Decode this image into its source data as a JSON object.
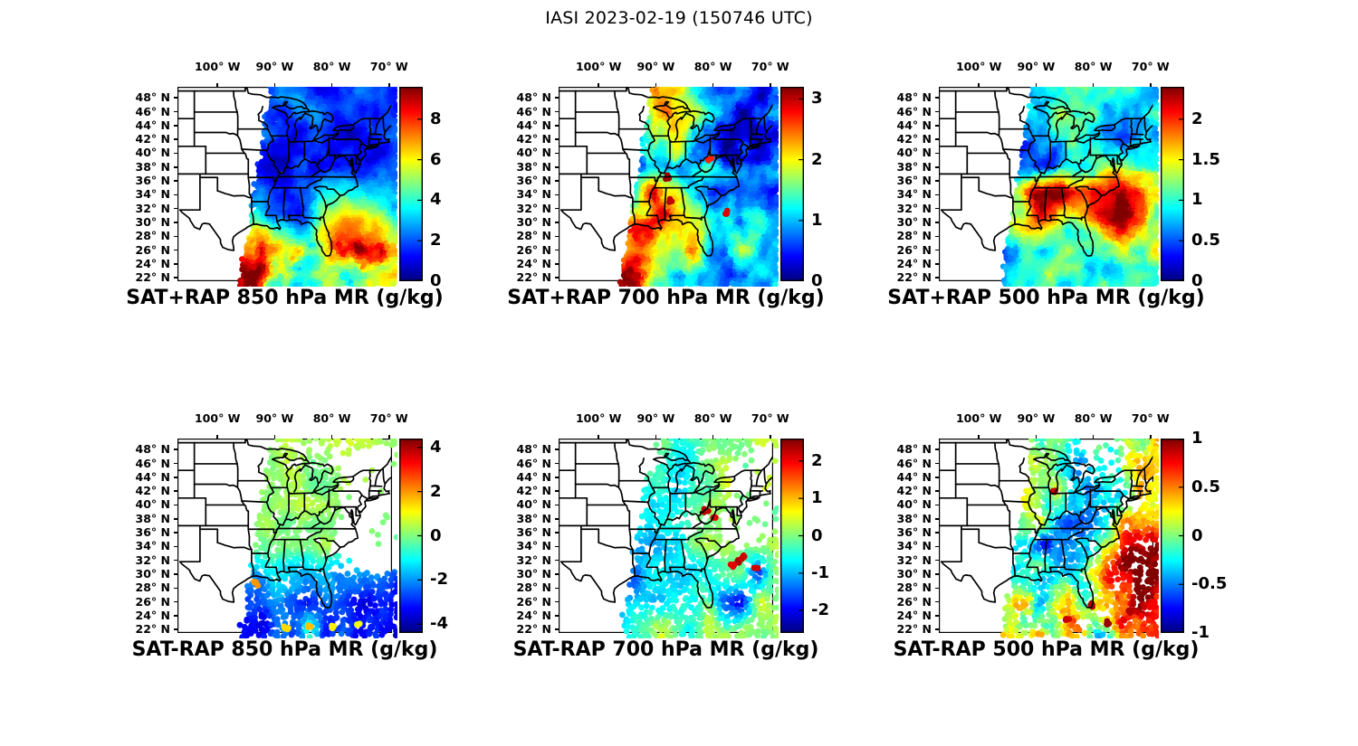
{
  "title": "IASI 2023-02-19 (150746 UTC)",
  "axes": {
    "lon_ticks": [
      {
        "label": "100° W",
        "value": -100
      },
      {
        "label": "90° W",
        "value": -90
      },
      {
        "label": "80° W",
        "value": -80
      },
      {
        "label": "70° W",
        "value": -70
      }
    ],
    "lat_ticks": [
      {
        "label": "48° N",
        "value": 48
      },
      {
        "label": "46° N",
        "value": 46
      },
      {
        "label": "44° N",
        "value": 44
      },
      {
        "label": "42° N",
        "value": 42
      },
      {
        "label": "40° N",
        "value": 40
      },
      {
        "label": "38° N",
        "value": 38
      },
      {
        "label": "36° N",
        "value": 36
      },
      {
        "label": "34° N",
        "value": 34
      },
      {
        "label": "32° N",
        "value": 32
      },
      {
        "label": "30° N",
        "value": 30
      },
      {
        "label": "28° N",
        "value": 28
      },
      {
        "label": "26° N",
        "value": 26
      },
      {
        "label": "24° N",
        "value": 24
      },
      {
        "label": "22° N",
        "value": 22
      }
    ]
  },
  "geo": {
    "lon_min": -107,
    "lon_max": -69.5,
    "lat_min": 21.5,
    "lat_max": 49.6,
    "swath_edge": {
      "lat_a": 21.5,
      "lon_a": -96.0,
      "lat_b": 49.5,
      "lon_b": -90.5
    }
  },
  "chart_data": {
    "type": "heatmap",
    "description": "Six-panel map figure of IASI satellite retrievals over the eastern United States: top row shows combined satellite+model (SAT+RAP) water-vapor mixing ratio at 850/700/500 hPa; bottom row shows satellite-minus-model differences (SAT-RAP) at the same levels. Jet colormap scatter swath over a state-boundary basemap. Values in g/kg, estimated on a coarse lon/lat grid.",
    "grid_lons": [
      -96,
      -93,
      -90,
      -87,
      -84,
      -81,
      -78,
      -75,
      -72,
      -69
    ],
    "grid_lats": [
      22,
      26,
      30,
      34,
      38,
      42,
      46,
      50
    ],
    "panels": [
      {
        "caption": "SAT+RAP 850 hPa MR (g/kg)",
        "row": 0,
        "col": 0,
        "colorbar": {
          "min": 0,
          "max": 9.6,
          "tick_labels": [
            "0",
            "2",
            "4",
            "6",
            "8"
          ],
          "tick_values": [
            0,
            2,
            4,
            6,
            8
          ]
        },
        "values": [
          [
            9,
            8,
            4,
            5,
            4,
            6,
            5,
            4,
            6,
            7
          ],
          [
            8.5,
            9,
            6,
            6,
            5,
            6.5,
            8.5,
            9,
            7,
            5
          ],
          [
            4,
            5,
            3,
            2,
            2.5,
            6,
            6.5,
            7,
            6,
            4
          ],
          [
            2.5,
            2,
            1.5,
            1.2,
            2,
            4.5,
            4,
            3,
            2.5,
            2.5
          ],
          [
            2,
            1.5,
            1,
            1,
            1.5,
            1,
            1.5,
            1.5,
            1.5,
            1.5
          ],
          [
            2.5,
            2,
            1.5,
            1,
            1.5,
            1.5,
            1,
            1.5,
            2,
            2
          ],
          [
            3,
            2.5,
            2,
            2,
            2,
            2,
            1.5,
            2,
            2,
            2
          ],
          [
            3,
            3,
            2.5,
            2.5,
            2,
            2,
            2,
            2,
            2,
            2
          ]
        ],
        "noise_amp": 0.8,
        "south_amp": 2.4,
        "dot_step": 3.5,
        "dot_r": 3.3,
        "dot_jit": 1.4,
        "cov_thresh": 0,
        "pinhole": 0,
        "gaps": [],
        "spots": []
      },
      {
        "caption": "SAT+RAP 700 hPa MR (g/kg)",
        "row": 0,
        "col": 1,
        "colorbar": {
          "min": 0,
          "max": 3.2,
          "tick_labels": [
            "0",
            "1",
            "2",
            "3"
          ],
          "tick_values": [
            0,
            1,
            2,
            3
          ]
        },
        "values": [
          [
            3.1,
            3,
            1.5,
            1,
            1.2,
            1,
            0.8,
            1,
            1.2,
            1
          ],
          [
            2,
            2.2,
            1.8,
            2,
            2.5,
            1.5,
            1,
            2.2,
            1.5,
            0.8
          ],
          [
            2,
            2.5,
            2.8,
            2.5,
            2,
            1.5,
            1,
            0.6,
            1.8,
            1
          ],
          [
            1.2,
            1.5,
            2.9,
            2,
            1.2,
            0.8,
            0.5,
            0.4,
            0.5,
            0.6
          ],
          [
            0.6,
            0.8,
            1.2,
            1.4,
            0.8,
            1.2,
            0.5,
            0.4,
            0.4,
            0.5
          ],
          [
            0.5,
            0.8,
            1.6,
            2,
            1.8,
            1,
            0.5,
            0.5,
            0.4,
            0.4
          ],
          [
            1,
            1.5,
            2.2,
            2.4,
            2,
            1.5,
            0.8,
            0.5,
            0.5,
            0.5
          ],
          [
            1.5,
            2,
            2.4,
            2,
            1.5,
            1,
            0.8,
            0.6,
            0.5,
            0.5
          ]
        ],
        "noise_amp": 0.45,
        "south_amp": 1,
        "dot_step": 3.5,
        "dot_r": 3.3,
        "dot_jit": 1.4,
        "cov_thresh": 0,
        "pinhole": 0,
        "gaps": [],
        "spots": [
          {
            "lon": -87.9,
            "lat": 36.6,
            "v": 3.1
          },
          {
            "lon": -87.3,
            "lat": 33.2,
            "v": 3.0
          },
          {
            "lon": -94.5,
            "lat": 22.4,
            "v": 3.1
          },
          {
            "lon": -93.5,
            "lat": 22.2,
            "v": 3.0
          },
          {
            "lon": -77.9,
            "lat": 31.4,
            "v": 2.9
          },
          {
            "lon": -80.5,
            "lat": 39.0,
            "v": 2.7
          }
        ]
      },
      {
        "caption": "SAT+RAP 500 hPa MR (g/kg)",
        "row": 0,
        "col": 2,
        "colorbar": {
          "min": 0,
          "max": 2.4,
          "tick_labels": [
            "0",
            "0.5",
            "1",
            "1.5",
            "2"
          ],
          "tick_values": [
            0,
            0.5,
            1,
            1.5,
            2
          ]
        },
        "values": [
          [
            0.6,
            1,
            0.8,
            1.2,
            0.8,
            1,
            1.2,
            0.8,
            1.4,
            1
          ],
          [
            0.5,
            0.8,
            1.2,
            1,
            1.2,
            1,
            0.8,
            1.2,
            1,
            1.4
          ],
          [
            1,
            1.4,
            2,
            1.8,
            1.2,
            1.5,
            2,
            2.2,
            1.8,
            1.2
          ],
          [
            0.8,
            1,
            2.2,
            2.3,
            2,
            1.8,
            2.2,
            2.4,
            2.2,
            1.5
          ],
          [
            0.4,
            0.5,
            0.6,
            0.5,
            0.8,
            1,
            1.2,
            1,
            0.9,
            0.9
          ],
          [
            0.6,
            0.4,
            0.5,
            0.8,
            1,
            0.8,
            0.7,
            0.6,
            0.7,
            0.8
          ],
          [
            0.9,
            0.7,
            0.8,
            1,
            1.1,
            1,
            0.8,
            1,
            0.8,
            0.9
          ],
          [
            0.8,
            0.8,
            1,
            1,
            1,
            1.1,
            1,
            1,
            1,
            0.8
          ]
        ],
        "noise_amp": 0.3,
        "south_amp": 1,
        "dot_step": 3.5,
        "dot_r": 3.3,
        "dot_jit": 1.4,
        "cov_thresh": 0,
        "pinhole": 0,
        "gaps": [],
        "spots": []
      },
      {
        "caption": "SAT-RAP 850 hPa MR (g/kg)",
        "row": 1,
        "col": 0,
        "colorbar": {
          "min": -4.4,
          "max": 4.4,
          "tick_labels": [
            "-4",
            "-2",
            "0",
            "2",
            "4"
          ],
          "tick_values": [
            -4,
            -2,
            0,
            2,
            4
          ]
        },
        "values": [
          [
            -3,
            -3.5,
            -2.5,
            -3,
            -1,
            -3.5,
            -2,
            -3.5,
            -3,
            -4
          ],
          [
            -3.5,
            -3,
            -2,
            -2.5,
            -3,
            -2,
            -2.5,
            -3,
            -3.5,
            -3
          ],
          [
            -1.5,
            -2,
            -1,
            -1.5,
            -2,
            -1.5,
            -2.5,
            -2,
            -2,
            -2.5
          ],
          [
            0,
            0,
            0.2,
            0,
            -0.3,
            0.3,
            0,
            0,
            0,
            0
          ],
          [
            0.2,
            0,
            0.3,
            0,
            0.2,
            0,
            0.2,
            0,
            0,
            0
          ],
          [
            0.3,
            0.2,
            0,
            0.3,
            0.2,
            0,
            0.3,
            0.2,
            0,
            0.3
          ],
          [
            0.3,
            0.3,
            0.2,
            0.3,
            0,
            0.3,
            0.5,
            0.3,
            0.5,
            0.3
          ],
          [
            0.5,
            0.3,
            0.3,
            0.5,
            0.3,
            0.3,
            0.5,
            0.5,
            0.5,
            0.5
          ]
        ],
        "noise_amp": 0.35,
        "south_amp": 1.6,
        "dot_step": 4.8,
        "dot_r": 3.4,
        "dot_jit": 2.2,
        "cov_thresh": 0.1,
        "pinhole": 0.05,
        "gaps": [
          {
            "lon": -72,
            "lat": 43,
            "rlon": 7,
            "rlat": 6,
            "keep": 0.08
          },
          {
            "lon": -72.5,
            "lat": 36,
            "rlon": 7,
            "rlat": 6,
            "keep": 0.06
          },
          {
            "lon": -76.5,
            "lat": 32.5,
            "rlon": 4.5,
            "rlat": 3,
            "keep": 0.3
          },
          {
            "lon": -84,
            "lat": 48,
            "rlon": 7,
            "rlat": 3,
            "keep": 0.45
          }
        ],
        "spots": [
          {
            "lon": -93.3,
            "lat": 28.6,
            "v": 2.0
          },
          {
            "lon": -84,
            "lat": 22.5,
            "v": 1.6
          },
          {
            "lon": -80,
            "lat": 22.4,
            "v": 1.2
          },
          {
            "lon": -75.5,
            "lat": 22.8,
            "v": 1.0
          },
          {
            "lon": -88,
            "lat": 22.3,
            "v": 1.4
          }
        ]
      },
      {
        "caption": "SAT-RAP 700 hPa MR (g/kg)",
        "row": 1,
        "col": 1,
        "colorbar": {
          "min": -2.6,
          "max": 2.6,
          "tick_labels": [
            "-2",
            "-1",
            "0",
            "1",
            "2"
          ],
          "tick_values": [
            -2,
            -1,
            0,
            1,
            2
          ]
        },
        "values": [
          [
            -0.8,
            -0.5,
            0.2,
            0,
            -0.5,
            0.2,
            0,
            0.2,
            0,
            0.2
          ],
          [
            -1.5,
            -1,
            -1.2,
            -0.8,
            -0.5,
            0,
            -1.5,
            -2.2,
            0.2,
            0
          ],
          [
            -1,
            -1.5,
            -0.8,
            -1,
            -0.8,
            -0.5,
            0,
            0.2,
            -2,
            0.3
          ],
          [
            -0.5,
            -1,
            -1.2,
            -0.8,
            -0.3,
            0,
            0.2,
            0,
            0.3,
            0.2
          ],
          [
            -0.3,
            -0.5,
            -0.8,
            -0.5,
            0,
            0.2,
            0,
            0.2,
            0,
            0
          ],
          [
            0,
            -0.3,
            -0.5,
            -0.8,
            -0.5,
            -0.3,
            0.2,
            0,
            0.2,
            0.2
          ],
          [
            0.2,
            0,
            -0.3,
            -0.5,
            -0.8,
            0,
            0.2,
            0,
            0.3,
            0.2
          ],
          [
            0.2,
            0.2,
            0,
            -0.5,
            0,
            0.2,
            0,
            0.3,
            0.2,
            0.3
          ]
        ],
        "noise_amp": 0.3,
        "south_amp": 1.3,
        "dot_step": 4.8,
        "dot_r": 3.4,
        "dot_jit": 2.2,
        "cov_thresh": 0.16,
        "pinhole": 0.05,
        "gaps": [
          {
            "lon": -71.5,
            "lat": 44,
            "rlon": 6,
            "rlat": 5,
            "keep": 0.15
          },
          {
            "lon": -74,
            "lat": 37.5,
            "rlon": 5,
            "rlat": 4,
            "keep": 0.15
          },
          {
            "lon": -84.5,
            "lat": 37.5,
            "rlon": 3,
            "rlat": 2,
            "keep": 0.45
          },
          {
            "lon": -92.5,
            "lat": 47.5,
            "rlon": 4,
            "rlat": 3,
            "keep": 0.5
          }
        ],
        "spots": [
          {
            "lon": -81.2,
            "lat": 39.2,
            "v": 2.3
          },
          {
            "lon": -79.9,
            "lat": 38.3,
            "v": 2.1
          },
          {
            "lon": -75.6,
            "lat": 31.8,
            "v": 2.4
          },
          {
            "lon": -76.6,
            "lat": 31.2,
            "v": 2.1
          },
          {
            "lon": -74.9,
            "lat": 32.4,
            "v": 2.2
          },
          {
            "lon": -72.5,
            "lat": 30.8,
            "v": 2.2
          }
        ]
      },
      {
        "caption": "SAT-RAP 500 hPa MR (g/kg)",
        "row": 1,
        "col": 2,
        "colorbar": {
          "min": -1,
          "max": 1,
          "tick_labels": [
            "-1",
            "-0.5",
            "0",
            "0.5",
            "1"
          ],
          "tick_values": [
            -1,
            -0.5,
            0,
            0.5,
            1
          ]
        },
        "values": [
          [
            0.2,
            0,
            0.3,
            -0.2,
            0.4,
            0.2,
            -0.3,
            0.5,
            0.3,
            0.6
          ],
          [
            0,
            0.3,
            -0.2,
            0.2,
            0.4,
            -0.3,
            0.3,
            0.6,
            0.8,
            0.5
          ],
          [
            -0.3,
            -0.2,
            0,
            -0.4,
            -0.3,
            0.2,
            0.5,
            0.8,
            1,
            0.9
          ],
          [
            0.1,
            0,
            -0.4,
            -0.5,
            -0.4,
            -0.3,
            0.3,
            0.6,
            0.9,
            1
          ],
          [
            0.1,
            0,
            0.1,
            -0.3,
            -0.5,
            -0.4,
            -0.3,
            0.2,
            0.3,
            0.4
          ],
          [
            0.1,
            0.2,
            0.1,
            0,
            -0.3,
            -0.5,
            -0.4,
            -0.3,
            0.2,
            0.1
          ],
          [
            0.1,
            0,
            0.2,
            0.1,
            -0.2,
            -0.3,
            0,
            -0.2,
            0.2,
            0.1
          ],
          [
            0.1,
            0.2,
            0.1,
            0.2,
            0,
            0.1,
            0.2,
            0,
            0.1,
            0.2
          ]
        ],
        "noise_amp": 0.26,
        "south_amp": 1.5,
        "dot_step": 4.8,
        "dot_r": 3.4,
        "dot_jit": 2.2,
        "cov_thresh": 0.14,
        "pinhole": 0.05,
        "gaps": [
          {
            "lon": -79,
            "lat": 46.5,
            "rlon": 5,
            "rlat": 3.5,
            "keep": 0.3
          },
          {
            "lon": -73.5,
            "lat": 41.5,
            "rlon": 3,
            "rlat": 2.5,
            "keep": 0.45
          }
        ],
        "spots": [
          {
            "lon": -86.9,
            "lat": 41.9,
            "v": 0.85
          },
          {
            "lon": -80.5,
            "lat": 25.5,
            "v": 0.9
          },
          {
            "lon": -77.5,
            "lat": 23.0,
            "v": 0.95
          },
          {
            "lon": -73.5,
            "lat": 24.5,
            "v": 0.9
          },
          {
            "lon": -84.5,
            "lat": 23.5,
            "v": 0.85
          }
        ]
      }
    ]
  }
}
